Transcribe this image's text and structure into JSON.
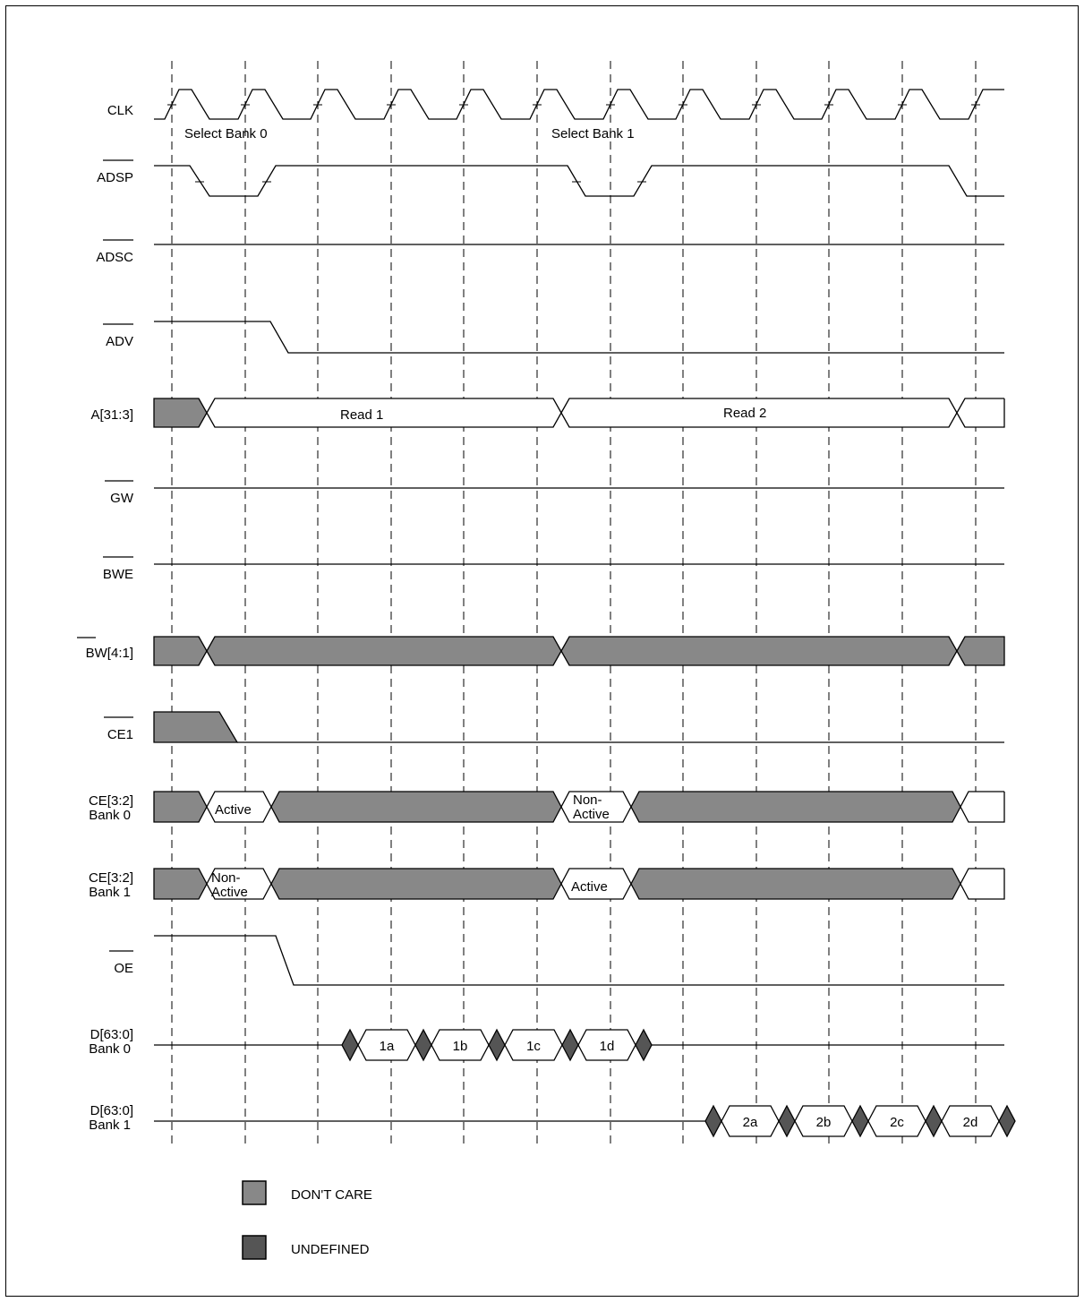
{
  "signals": [
    {
      "label": "CLK",
      "overbar": false
    },
    {
      "label": "ADSP",
      "overbar": true
    },
    {
      "label": "ADSC",
      "overbar": true
    },
    {
      "label": "ADV",
      "overbar": true
    },
    {
      "label": "A[31:3]",
      "overbar": false
    },
    {
      "label": "GW",
      "overbar": true
    },
    {
      "label": "BWE",
      "overbar": true
    },
    {
      "label": "BW[4:1]",
      "overbar": true
    },
    {
      "label": "CE1",
      "overbar": true
    },
    {
      "label": "CE[3:2]",
      "label2": "Bank 0",
      "overbar": false
    },
    {
      "label": "CE[3:2]",
      "label2": "Bank 1",
      "overbar": false
    },
    {
      "label": "OE",
      "overbar": true
    },
    {
      "label": "D[63:0]",
      "label2": "Bank 0",
      "overbar": false
    },
    {
      "label": "D[63:0]",
      "label2": "Bank 1",
      "overbar": false
    }
  ],
  "annotations": {
    "select_bank_0": "Select Bank 0",
    "select_bank_1": "Select Bank 1"
  },
  "bus_values": {
    "read1": "Read 1",
    "read2": "Read 2",
    "active": "Active",
    "non_active_1": "Non-",
    "non_active_2": "Active",
    "d_bank0": [
      "1a",
      "1b",
      "1c",
      "1d"
    ],
    "d_bank1": [
      "2a",
      "2b",
      "2c",
      "2d"
    ]
  },
  "legend": [
    {
      "label": "DON'T CARE",
      "color": "#888888"
    },
    {
      "label": "UNDEFINED",
      "color": "#555555"
    }
  ],
  "colors": {
    "dont_care": "#888888",
    "undefined": "#555555",
    "line": "#000000"
  }
}
